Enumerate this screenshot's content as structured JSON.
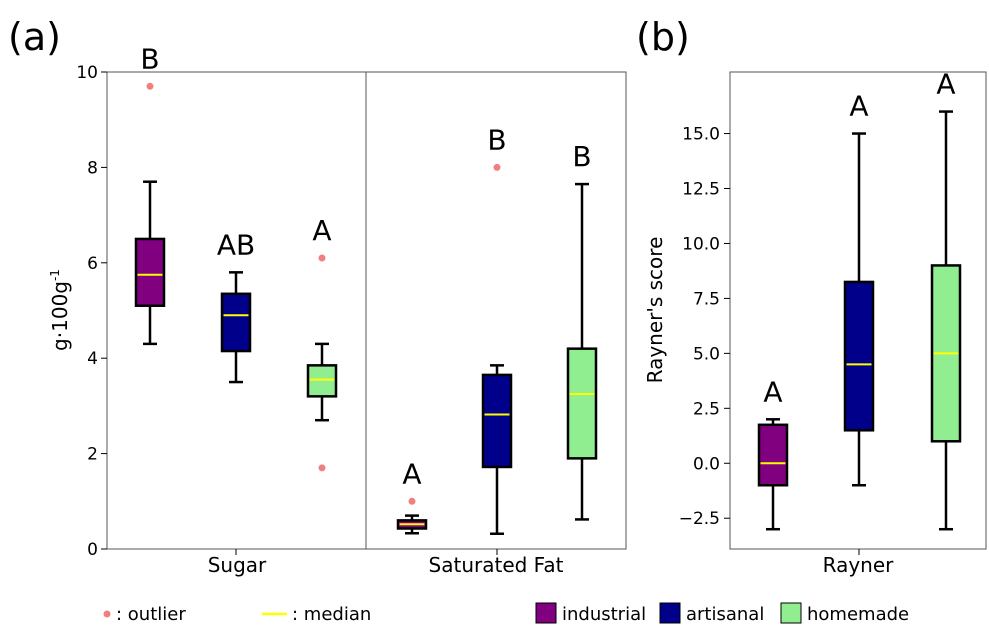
{
  "chart_data": [
    {
      "panel_label": "(a)",
      "type": "box",
      "ylabel": "g·100g",
      "ylabel_sup": "-1",
      "ylim": [
        0,
        10
      ],
      "yticks": [
        0,
        2,
        4,
        6,
        8,
        10
      ],
      "grid": false,
      "groups": [
        {
          "name": "Sugar",
          "boxes": [
            {
              "series": "industrial",
              "whisker_low": 4.3,
              "q1": 5.1,
              "median": 5.75,
              "q3": 6.5,
              "whisker_high": 7.7,
              "outliers": [
                9.7
              ],
              "letter": "B"
            },
            {
              "series": "artisanal",
              "whisker_low": 3.5,
              "q1": 4.15,
              "median": 4.9,
              "q3": 5.35,
              "whisker_high": 5.8,
              "outliers": [],
              "letter": "AB"
            },
            {
              "series": "homemade",
              "whisker_low": 2.7,
              "q1": 3.2,
              "median": 3.55,
              "q3": 3.85,
              "whisker_high": 4.3,
              "outliers": [
                6.1,
                1.7
              ],
              "letter": "A"
            }
          ]
        },
        {
          "name": "Saturated Fat",
          "boxes": [
            {
              "series": "industrial",
              "whisker_low": 0.33,
              "q1": 0.43,
              "median": 0.52,
              "q3": 0.6,
              "whisker_high": 0.7,
              "outliers": [
                1.0
              ],
              "letter": "A"
            },
            {
              "series": "artisanal",
              "whisker_low": 0.32,
              "q1": 1.72,
              "median": 2.82,
              "q3": 3.65,
              "whisker_high": 3.85,
              "outliers": [
                8.0
              ],
              "letter": "B"
            },
            {
              "series": "homemade",
              "whisker_low": 0.62,
              "q1": 1.9,
              "median": 3.25,
              "q3": 4.2,
              "whisker_high": 7.65,
              "outliers": [],
              "letter": "B"
            }
          ]
        }
      ]
    },
    {
      "panel_label": "(b)",
      "type": "box",
      "ylabel": "Rayner's score",
      "ylim": [
        -3.9,
        17.8
      ],
      "yticks": [
        "−2.5",
        "0.0",
        "2.5",
        "5.0",
        "7.5",
        "10.0",
        "12.5",
        "15.0"
      ],
      "ytick_values": [
        -2.5,
        0,
        2.5,
        5,
        7.5,
        10,
        12.5,
        15
      ],
      "grid": false,
      "groups": [
        {
          "name": "Rayner",
          "boxes": [
            {
              "series": "industrial",
              "whisker_low": -3.0,
              "q1": -1.0,
              "median": 0.0,
              "q3": 1.75,
              "whisker_high": 2.0,
              "outliers": [],
              "letter": "A"
            },
            {
              "series": "artisanal",
              "whisker_low": -1.0,
              "q1": 1.5,
              "median": 4.5,
              "q3": 8.25,
              "whisker_high": 15.0,
              "outliers": [],
              "letter": "A"
            },
            {
              "series": "homemade",
              "whisker_low": -3.0,
              "q1": 1.0,
              "median": 5.0,
              "q3": 9.0,
              "whisker_high": 16.0,
              "outliers": [],
              "letter": "A"
            }
          ]
        }
      ]
    }
  ],
  "legend": {
    "position": "bottom",
    "outlier_label": ": outlier",
    "median_label": ": median",
    "series": [
      {
        "name": "industrial",
        "color": "#800080"
      },
      {
        "name": "artisanal",
        "color": "#00008b"
      },
      {
        "name": "homemade",
        "color": "#90ee90"
      }
    ]
  },
  "colors": {
    "outlier": "#f08080",
    "median": "#ffff00",
    "box_edge": "#000000"
  }
}
